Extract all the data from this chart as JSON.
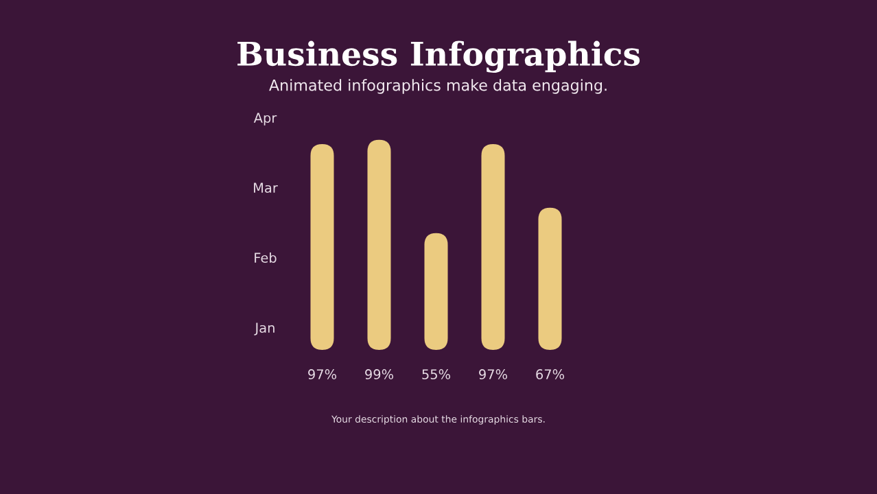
{
  "chart_data": {
    "type": "bar",
    "title": "Business Infographics",
    "subtitle": "Animated infographics make data engaging.",
    "categories": [
      null,
      null,
      null,
      null,
      null
    ],
    "values": [
      97,
      99,
      55,
      97,
      67
    ],
    "value_labels": [
      "97%",
      "99%",
      "55%",
      "97%",
      "67%"
    ],
    "color": "#ebcb80",
    "grid": false,
    "legend": false,
    "annotations": [
      "Apr",
      "Mar",
      "Feb",
      "Jan",
      "Your description about the infographics bars."
    ]
  }
}
